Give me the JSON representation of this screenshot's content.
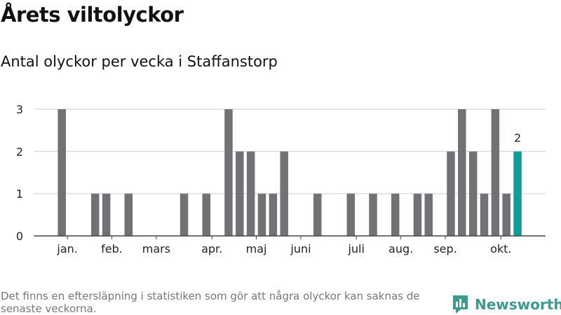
{
  "header": {
    "title": "Årets viltolyckor",
    "subtitle": "Antal olyckor per vecka i Staffanstorp"
  },
  "footer": {
    "note": "Det finns en eftersläpning i statistiken som gör att några olyckor kan saknas de senaste veckorna.",
    "brand": "Newsworthy"
  },
  "colors": {
    "bar": "#727176",
    "highlight": "#0f9e96",
    "grid": "#dddddd",
    "axis": "#444444",
    "brand": "#3d9a8f"
  },
  "chart_data": {
    "type": "bar",
    "x": [
      1,
      2,
      3,
      4,
      5,
      6,
      7,
      8,
      9,
      10,
      11,
      12,
      13,
      14,
      15,
      16,
      17,
      18,
      19,
      20,
      21,
      22,
      23,
      24,
      25,
      26,
      27,
      28,
      29,
      30,
      31,
      32,
      33,
      34,
      35,
      36,
      37,
      38,
      39,
      40,
      41,
      42
    ],
    "values": [
      3,
      0,
      0,
      1,
      1,
      0,
      1,
      0,
      0,
      0,
      0,
      1,
      0,
      1,
      0,
      3,
      2,
      2,
      1,
      1,
      2,
      0,
      0,
      1,
      0,
      0,
      1,
      0,
      1,
      0,
      1,
      0,
      1,
      1,
      0,
      2,
      3,
      2,
      1,
      3,
      1,
      2
    ],
    "highlight_index": 41,
    "highlight_label": "2",
    "yticks": [
      0,
      1,
      2,
      3
    ],
    "ylim": [
      0,
      3
    ],
    "month_labels": [
      {
        "label": "jan.",
        "week": 1.5
      },
      {
        "label": "feb.",
        "week": 5.5
      },
      {
        "label": "mars",
        "week": 9.5
      },
      {
        "label": "apr.",
        "week": 14.5
      },
      {
        "label": "maj",
        "week": 18.5
      },
      {
        "label": "juni",
        "week": 22.5
      },
      {
        "label": "juli",
        "week": 27.5
      },
      {
        "label": "aug.",
        "week": 31.5
      },
      {
        "label": "sep.",
        "week": 35.5
      },
      {
        "label": "okt.",
        "week": 40.5
      }
    ],
    "grid": true,
    "legend": "none"
  }
}
